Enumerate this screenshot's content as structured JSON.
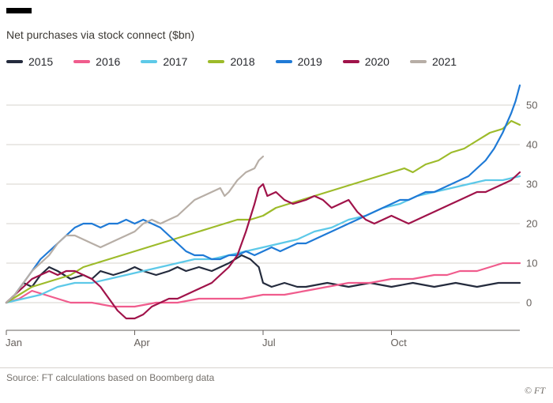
{
  "header": {
    "title": "Net purchases via stock connect ($bn)"
  },
  "footer": {
    "source": "Source: FT calculations based on Boomberg data",
    "credit": "© FT"
  },
  "colors": {
    "axis": "#66605c",
    "grid": "#d7d3cd",
    "marker": "#000000"
  },
  "chart_data": {
    "type": "line",
    "title": "Net purchases via stock connect ($bn)",
    "xlabel": "",
    "ylabel": "",
    "x_unit": "months from Jan 1 (0 = Jan, 12 = end Dec)",
    "xlim": [
      0,
      12
    ],
    "ylim": [
      -7,
      58
    ],
    "grid": "horizontal",
    "legend_position": "top",
    "x_ticks": [
      {
        "label": "Jan",
        "x": 0
      },
      {
        "label": "Apr",
        "x": 3
      },
      {
        "label": "Jul",
        "x": 6
      },
      {
        "label": "Oct",
        "x": 9
      }
    ],
    "y_ticks": [
      0,
      10,
      20,
      30,
      40,
      50
    ],
    "series": [
      {
        "name": "2015",
        "color": "#242b3d",
        "points": [
          [
            0,
            0
          ],
          [
            0.2,
            2
          ],
          [
            0.4,
            5
          ],
          [
            0.6,
            4
          ],
          [
            0.8,
            7
          ],
          [
            1,
            9
          ],
          [
            1.2,
            8
          ],
          [
            1.5,
            6
          ],
          [
            1.8,
            7
          ],
          [
            2,
            6
          ],
          [
            2.2,
            8
          ],
          [
            2.5,
            7
          ],
          [
            2.8,
            8
          ],
          [
            3,
            9
          ],
          [
            3.2,
            8
          ],
          [
            3.5,
            7
          ],
          [
            3.8,
            8
          ],
          [
            4,
            9
          ],
          [
            4.2,
            8
          ],
          [
            4.5,
            9
          ],
          [
            4.8,
            8
          ],
          [
            5,
            9
          ],
          [
            5.2,
            10
          ],
          [
            5.5,
            12
          ],
          [
            5.7,
            11
          ],
          [
            5.9,
            9
          ],
          [
            6,
            5
          ],
          [
            6.2,
            4
          ],
          [
            6.5,
            5
          ],
          [
            6.8,
            4
          ],
          [
            7,
            4
          ],
          [
            7.5,
            5
          ],
          [
            8,
            4
          ],
          [
            8.5,
            5
          ],
          [
            9,
            4
          ],
          [
            9.5,
            5
          ],
          [
            10,
            4
          ],
          [
            10.5,
            5
          ],
          [
            11,
            4
          ],
          [
            11.5,
            5
          ],
          [
            12,
            5
          ]
        ]
      },
      {
        "name": "2016",
        "color": "#f05c8d",
        "points": [
          [
            0,
            0
          ],
          [
            0.3,
            1
          ],
          [
            0.6,
            3
          ],
          [
            0.9,
            2
          ],
          [
            1.2,
            1
          ],
          [
            1.5,
            0
          ],
          [
            2,
            0
          ],
          [
            2.5,
            -1
          ],
          [
            3,
            -1
          ],
          [
            3.5,
            0
          ],
          [
            4,
            0
          ],
          [
            4.5,
            1
          ],
          [
            5,
            1
          ],
          [
            5.5,
            1
          ],
          [
            6,
            2
          ],
          [
            6.5,
            2
          ],
          [
            7,
            3
          ],
          [
            7.5,
            4
          ],
          [
            8,
            5
          ],
          [
            8.5,
            5
          ],
          [
            9,
            6
          ],
          [
            9.5,
            6
          ],
          [
            10,
            7
          ],
          [
            10.3,
            7
          ],
          [
            10.6,
            8
          ],
          [
            11,
            8
          ],
          [
            11.3,
            9
          ],
          [
            11.6,
            10
          ],
          [
            12,
            10
          ]
        ]
      },
      {
        "name": "2017",
        "color": "#5dc9e8",
        "points": [
          [
            0,
            0
          ],
          [
            0.4,
            1
          ],
          [
            0.8,
            2
          ],
          [
            1.2,
            4
          ],
          [
            1.6,
            5
          ],
          [
            2,
            5
          ],
          [
            2.4,
            6
          ],
          [
            2.8,
            7
          ],
          [
            3.2,
            8
          ],
          [
            3.6,
            9
          ],
          [
            4,
            10
          ],
          [
            4.4,
            11
          ],
          [
            4.8,
            11
          ],
          [
            5.2,
            12
          ],
          [
            5.6,
            13
          ],
          [
            6,
            14
          ],
          [
            6.4,
            15
          ],
          [
            6.8,
            16
          ],
          [
            7.2,
            18
          ],
          [
            7.6,
            19
          ],
          [
            8,
            21
          ],
          [
            8.4,
            22
          ],
          [
            8.8,
            24
          ],
          [
            9.2,
            25
          ],
          [
            9.6,
            27
          ],
          [
            10,
            28
          ],
          [
            10.4,
            29
          ],
          [
            10.8,
            30
          ],
          [
            11.2,
            31
          ],
          [
            11.6,
            31
          ],
          [
            12,
            32
          ]
        ]
      },
      {
        "name": "2018",
        "color": "#9dbb2a",
        "points": [
          [
            0,
            0
          ],
          [
            0.3,
            2
          ],
          [
            0.6,
            4
          ],
          [
            0.9,
            5
          ],
          [
            1.2,
            6
          ],
          [
            1.5,
            7
          ],
          [
            1.8,
            9
          ],
          [
            2.1,
            10
          ],
          [
            2.4,
            11
          ],
          [
            2.7,
            12
          ],
          [
            3,
            13
          ],
          [
            3.3,
            14
          ],
          [
            3.6,
            15
          ],
          [
            3.9,
            16
          ],
          [
            4.2,
            17
          ],
          [
            4.5,
            18
          ],
          [
            4.8,
            19
          ],
          [
            5.1,
            20
          ],
          [
            5.4,
            21
          ],
          [
            5.7,
            21
          ],
          [
            6,
            22
          ],
          [
            6.3,
            24
          ],
          [
            6.6,
            25
          ],
          [
            6.9,
            26
          ],
          [
            7.2,
            27
          ],
          [
            7.5,
            28
          ],
          [
            7.8,
            29
          ],
          [
            8.1,
            30
          ],
          [
            8.4,
            31
          ],
          [
            8.7,
            32
          ],
          [
            9,
            33
          ],
          [
            9.3,
            34
          ],
          [
            9.5,
            33
          ],
          [
            9.8,
            35
          ],
          [
            10.1,
            36
          ],
          [
            10.4,
            38
          ],
          [
            10.7,
            39
          ],
          [
            11,
            41
          ],
          [
            11.3,
            43
          ],
          [
            11.6,
            44
          ],
          [
            11.8,
            46
          ],
          [
            12,
            45
          ]
        ]
      },
      {
        "name": "2019",
        "color": "#1f7ad6",
        "points": [
          [
            0,
            0
          ],
          [
            0.2,
            2
          ],
          [
            0.4,
            5
          ],
          [
            0.6,
            8
          ],
          [
            0.8,
            11
          ],
          [
            1,
            13
          ],
          [
            1.2,
            15
          ],
          [
            1.4,
            17
          ],
          [
            1.6,
            19
          ],
          [
            1.8,
            20
          ],
          [
            2,
            20
          ],
          [
            2.2,
            19
          ],
          [
            2.4,
            20
          ],
          [
            2.6,
            20
          ],
          [
            2.8,
            21
          ],
          [
            3,
            20
          ],
          [
            3.2,
            21
          ],
          [
            3.4,
            20
          ],
          [
            3.6,
            19
          ],
          [
            3.8,
            17
          ],
          [
            4,
            15
          ],
          [
            4.2,
            13
          ],
          [
            4.4,
            12
          ],
          [
            4.6,
            12
          ],
          [
            4.8,
            11
          ],
          [
            5,
            11
          ],
          [
            5.2,
            12
          ],
          [
            5.4,
            12
          ],
          [
            5.6,
            13
          ],
          [
            5.8,
            12
          ],
          [
            6,
            13
          ],
          [
            6.2,
            14
          ],
          [
            6.4,
            13
          ],
          [
            6.6,
            14
          ],
          [
            6.8,
            15
          ],
          [
            7,
            15
          ],
          [
            7.2,
            16
          ],
          [
            7.4,
            17
          ],
          [
            7.6,
            18
          ],
          [
            7.8,
            19
          ],
          [
            8,
            20
          ],
          [
            8.2,
            21
          ],
          [
            8.4,
            22
          ],
          [
            8.6,
            23
          ],
          [
            8.8,
            24
          ],
          [
            9,
            25
          ],
          [
            9.2,
            26
          ],
          [
            9.4,
            26
          ],
          [
            9.6,
            27
          ],
          [
            9.8,
            28
          ],
          [
            10,
            28
          ],
          [
            10.2,
            29
          ],
          [
            10.4,
            30
          ],
          [
            10.6,
            31
          ],
          [
            10.8,
            32
          ],
          [
            11,
            34
          ],
          [
            11.2,
            36
          ],
          [
            11.4,
            39
          ],
          [
            11.6,
            43
          ],
          [
            11.8,
            48
          ],
          [
            11.9,
            51
          ],
          [
            12,
            55
          ]
        ]
      },
      {
        "name": "2020",
        "color": "#a0134a",
        "points": [
          [
            0,
            0
          ],
          [
            0.2,
            2
          ],
          [
            0.4,
            4
          ],
          [
            0.6,
            6
          ],
          [
            0.8,
            7
          ],
          [
            1,
            8
          ],
          [
            1.2,
            7
          ],
          [
            1.4,
            8
          ],
          [
            1.6,
            8
          ],
          [
            1.8,
            7
          ],
          [
            2,
            6
          ],
          [
            2.2,
            4
          ],
          [
            2.4,
            1
          ],
          [
            2.6,
            -2
          ],
          [
            2.8,
            -4
          ],
          [
            3,
            -4
          ],
          [
            3.2,
            -3
          ],
          [
            3.4,
            -1
          ],
          [
            3.6,
            0
          ],
          [
            3.8,
            1
          ],
          [
            4,
            1
          ],
          [
            4.2,
            2
          ],
          [
            4.4,
            3
          ],
          [
            4.6,
            4
          ],
          [
            4.8,
            5
          ],
          [
            5,
            7
          ],
          [
            5.2,
            9
          ],
          [
            5.4,
            12
          ],
          [
            5.6,
            18
          ],
          [
            5.8,
            25
          ],
          [
            5.9,
            29
          ],
          [
            6,
            30
          ],
          [
            6.1,
            27
          ],
          [
            6.3,
            28
          ],
          [
            6.5,
            26
          ],
          [
            6.7,
            25
          ],
          [
            7,
            26
          ],
          [
            7.2,
            27
          ],
          [
            7.4,
            26
          ],
          [
            7.6,
            24
          ],
          [
            7.8,
            25
          ],
          [
            8,
            26
          ],
          [
            8.2,
            23
          ],
          [
            8.4,
            21
          ],
          [
            8.6,
            20
          ],
          [
            8.8,
            21
          ],
          [
            9,
            22
          ],
          [
            9.2,
            21
          ],
          [
            9.4,
            20
          ],
          [
            9.6,
            21
          ],
          [
            9.8,
            22
          ],
          [
            10,
            23
          ],
          [
            10.2,
            24
          ],
          [
            10.4,
            25
          ],
          [
            10.6,
            26
          ],
          [
            10.8,
            27
          ],
          [
            11,
            28
          ],
          [
            11.2,
            28
          ],
          [
            11.4,
            29
          ],
          [
            11.6,
            30
          ],
          [
            11.8,
            31
          ],
          [
            12,
            33
          ]
        ]
      },
      {
        "name": "2021",
        "color": "#b7aea6",
        "points": [
          [
            0,
            0
          ],
          [
            0.2,
            2
          ],
          [
            0.4,
            5
          ],
          [
            0.6,
            8
          ],
          [
            0.8,
            10
          ],
          [
            1,
            12
          ],
          [
            1.2,
            15
          ],
          [
            1.4,
            17
          ],
          [
            1.6,
            17
          ],
          [
            1.8,
            16
          ],
          [
            2,
            15
          ],
          [
            2.2,
            14
          ],
          [
            2.4,
            15
          ],
          [
            2.6,
            16
          ],
          [
            2.8,
            17
          ],
          [
            3,
            18
          ],
          [
            3.2,
            20
          ],
          [
            3.4,
            21
          ],
          [
            3.6,
            20
          ],
          [
            3.8,
            21
          ],
          [
            4,
            22
          ],
          [
            4.2,
            24
          ],
          [
            4.4,
            26
          ],
          [
            4.6,
            27
          ],
          [
            4.8,
            28
          ],
          [
            5,
            29
          ],
          [
            5.1,
            27
          ],
          [
            5.2,
            28
          ],
          [
            5.4,
            31
          ],
          [
            5.6,
            33
          ],
          [
            5.8,
            34
          ],
          [
            5.9,
            36
          ],
          [
            6,
            37
          ]
        ]
      }
    ]
  }
}
